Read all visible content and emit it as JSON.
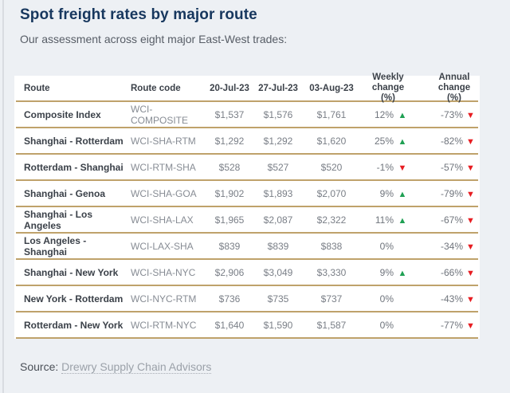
{
  "page": {
    "title": "Spot freight rates by major route",
    "subtitle": "Our assessment across eight major East-West trades:",
    "source_label": "Source:",
    "source_link": "Drewry Supply Chain Advisors"
  },
  "table": {
    "header": {
      "route": "Route",
      "route_code": "Route code",
      "date1": "20-Jul-23",
      "date2": "27-Jul-23",
      "date3": "03-Aug-23",
      "weekly_l1": "Weekly",
      "weekly_l2": "change (%)",
      "annual_l1": "Annual",
      "annual_l2": "change (%)"
    },
    "rows": [
      {
        "route": "Composite Index",
        "code": "WCI-COMPOSITE",
        "d1": "$1,537",
        "d2": "$1,576",
        "d3": "$1,761",
        "weekly": "12%",
        "weekly_dir": "up",
        "annual": "-73%",
        "annual_dir": "down"
      },
      {
        "route": "Shanghai - Rotterdam",
        "code": "WCI-SHA-RTM",
        "d1": "$1,292",
        "d2": "$1,292",
        "d3": "$1,620",
        "weekly": "25%",
        "weekly_dir": "up",
        "annual": "-82%",
        "annual_dir": "down"
      },
      {
        "route": "Rotterdam - Shanghai",
        "code": "WCI-RTM-SHA",
        "d1": "$528",
        "d2": "$527",
        "d3": "$520",
        "weekly": "-1%",
        "weekly_dir": "down",
        "annual": "-57%",
        "annual_dir": "down"
      },
      {
        "route": "Shanghai - Genoa",
        "code": "WCI-SHA-GOA",
        "d1": "$1,902",
        "d2": "$1,893",
        "d3": "$2,070",
        "weekly": "9%",
        "weekly_dir": "up",
        "annual": "-79%",
        "annual_dir": "down"
      },
      {
        "route": "Shanghai - Los Angeles",
        "code": "WCI-SHA-LAX",
        "d1": "$1,965",
        "d2": "$2,087",
        "d3": "$2,322",
        "weekly": "11%",
        "weekly_dir": "up",
        "annual": "-67%",
        "annual_dir": "down"
      },
      {
        "route": "Los Angeles - Shanghai",
        "code": "WCI-LAX-SHA",
        "d1": "$839",
        "d2": "$839",
        "d3": "$838",
        "weekly": "0%",
        "weekly_dir": "none",
        "annual": "-34%",
        "annual_dir": "down"
      },
      {
        "route": "Shanghai - New York",
        "code": "WCI-SHA-NYC",
        "d1": "$2,906",
        "d2": "$3,049",
        "d3": "$3,330",
        "weekly": "9%",
        "weekly_dir": "up",
        "annual": "-66%",
        "annual_dir": "down"
      },
      {
        "route": "New York - Rotterdam",
        "code": "WCI-NYC-RTM",
        "d1": "$736",
        "d2": "$735",
        "d3": "$737",
        "weekly": "0%",
        "weekly_dir": "none",
        "annual": "-43%",
        "annual_dir": "down"
      },
      {
        "route": "Rotterdam - New York",
        "code": "WCI-RTM-NYC",
        "d1": "$1,640",
        "d2": "$1,590",
        "d3": "$1,587",
        "weekly": "0%",
        "weekly_dir": "none",
        "annual": "-77%",
        "annual_dir": "down"
      }
    ]
  },
  "colors": {
    "background": "#edf0f4",
    "title_navy": "#17375e",
    "separator_gold": "#bfa26b",
    "up_green": "#1fa053",
    "down_red": "#e71d22"
  }
}
